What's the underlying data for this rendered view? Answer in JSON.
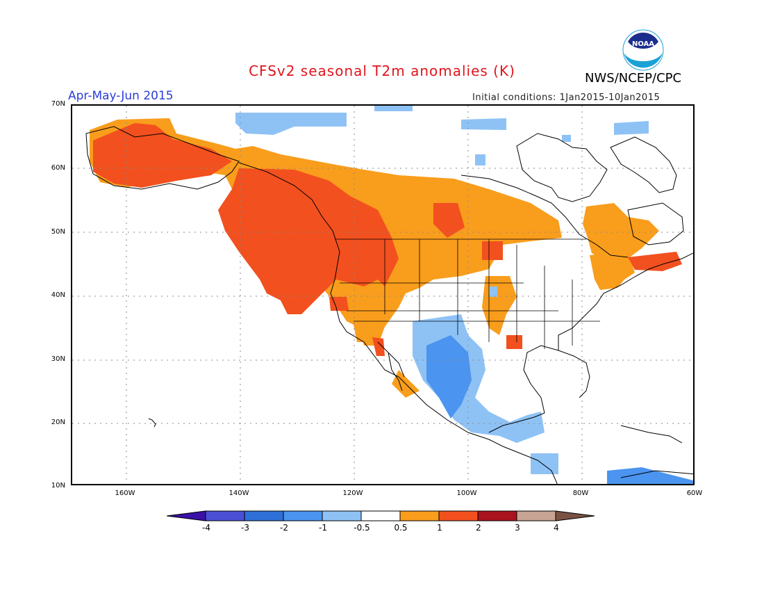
{
  "header": {
    "title": "CFSv2 seasonal T2m anomalies (K)",
    "agency": "NWS/NCEP/CPC",
    "logo_text": "NOAA",
    "period": "Apr-May-Jun 2015",
    "initial_conditions": "Initial conditions: 1Jan2015-10Jan2015"
  },
  "axes": {
    "lat_labels": [
      "70N",
      "60N",
      "50N",
      "40N",
      "30N",
      "20N",
      "10N"
    ],
    "lon_labels": [
      "160W",
      "140W",
      "120W",
      "100W",
      "80W",
      "60W"
    ]
  },
  "colorbar": {
    "labels": [
      "-4",
      "-3",
      "-2",
      "-1",
      "-0.5",
      "0.5",
      "1",
      "2",
      "3",
      "4"
    ],
    "colors": [
      "#3a10a6",
      "#4a4fd6",
      "#2f6fd8",
      "#4b94ef",
      "#8ec2f5",
      "#ffffff",
      "#f99d1c",
      "#f2501e",
      "#a8131e",
      "#c8a494",
      "#7a5244"
    ]
  },
  "legend_colors": {
    "light_blue": "#8ec2f5",
    "orange": "#f99d1c",
    "red_orange": "#f2501e",
    "medium_blue": "#4b94ef"
  }
}
